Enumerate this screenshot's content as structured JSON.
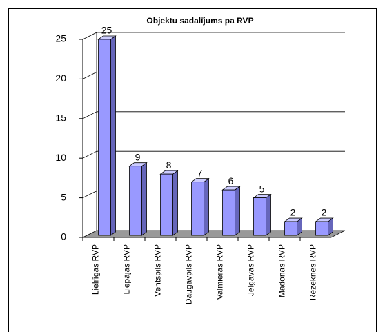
{
  "chart_data": {
    "type": "bar",
    "title": "Objektu sadalījums pa RVP",
    "categories": [
      "Lielrīgas RVP",
      "Liepājas RVP",
      "Ventspils RVP",
      "Daugavpils RVP",
      "Valmieras RVP",
      "Jelgavas RVP",
      "Madonas RVP",
      "Rēzeknes RVP"
    ],
    "values": [
      25,
      9,
      8,
      7,
      6,
      5,
      2,
      2
    ],
    "color": "#9999ff",
    "ylim": [
      0,
      25
    ],
    "yticks": [
      0,
      5,
      10,
      15,
      20,
      25
    ],
    "grid": true
  }
}
